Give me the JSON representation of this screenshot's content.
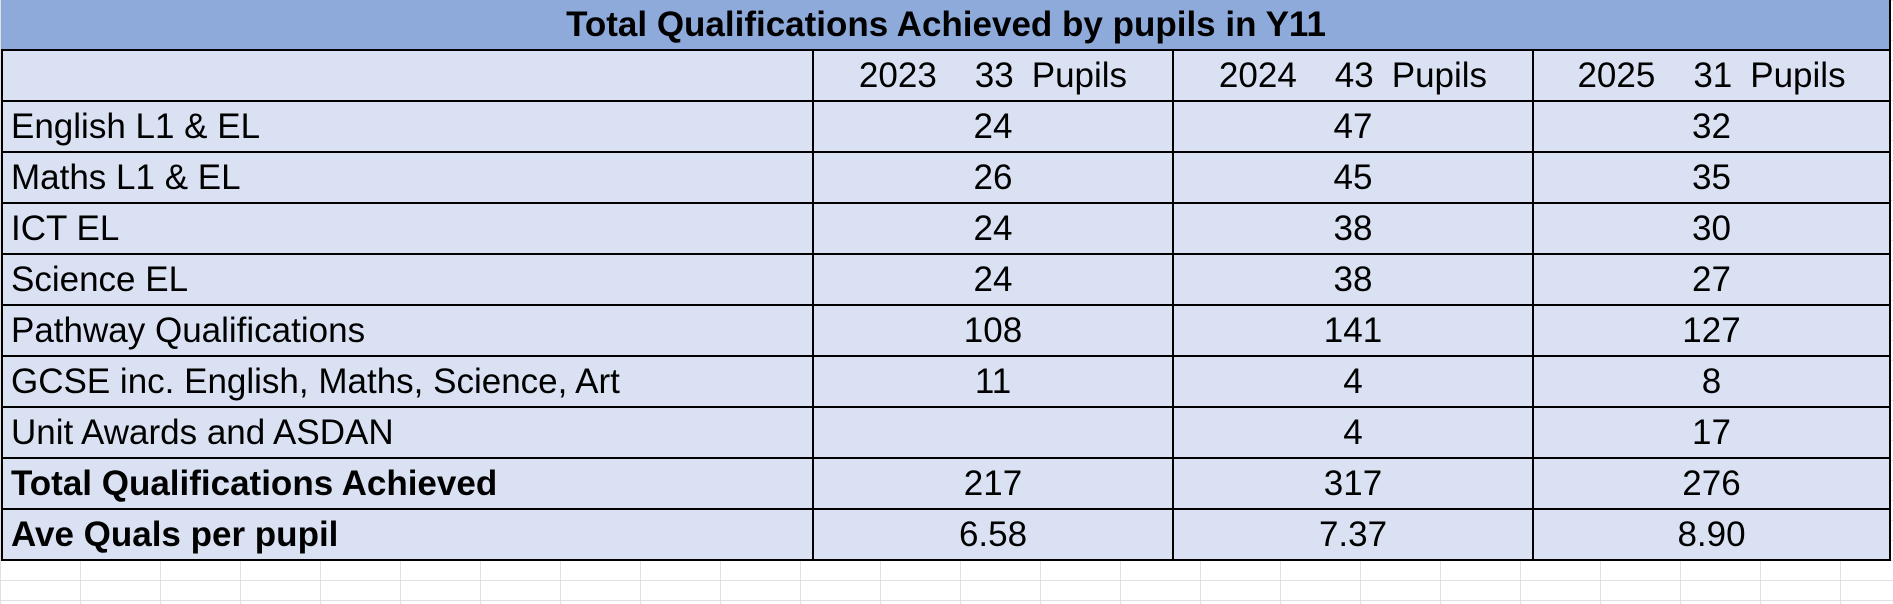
{
  "title": "Total Qualifications Achieved by pupils in Y11",
  "colors": {
    "title_fill": "#8EAADB",
    "body_fill": "#D9E1F2",
    "border": "#000000"
  },
  "columns": [
    {
      "year": "2023",
      "pupils": "33",
      "unit": "Pupils"
    },
    {
      "year": "2024",
      "pupils": "43",
      "unit": "Pupils"
    },
    {
      "year": "2025",
      "pupils": "31",
      "unit": "Pupils"
    }
  ],
  "rows": [
    {
      "label": "English L1 & EL",
      "values": [
        "24",
        "47",
        "32"
      ],
      "bold": false
    },
    {
      "label": "Maths L1 & EL",
      "values": [
        "26",
        "45",
        "35"
      ],
      "bold": false
    },
    {
      "label": "ICT EL",
      "values": [
        "24",
        "38",
        "30"
      ],
      "bold": false
    },
    {
      "label": "Science EL",
      "values": [
        "24",
        "38",
        "27"
      ],
      "bold": false
    },
    {
      "label": "Pathway Qualifications",
      "values": [
        "108",
        "141",
        "127"
      ],
      "bold": false
    },
    {
      "label": "GCSE inc. English, Maths, Science, Art",
      "values": [
        "11",
        "4",
        "8"
      ],
      "bold": false
    },
    {
      "label": "Unit Awards and ASDAN",
      "values": [
        "",
        "4",
        "17"
      ],
      "bold": false
    },
    {
      "label": "Total Qualifications Achieved",
      "values": [
        "217",
        "317",
        "276"
      ],
      "bold": true
    },
    {
      "label": "Ave Quals per pupil",
      "values": [
        "6.58",
        "7.37",
        "8.90"
      ],
      "bold": true
    }
  ]
}
